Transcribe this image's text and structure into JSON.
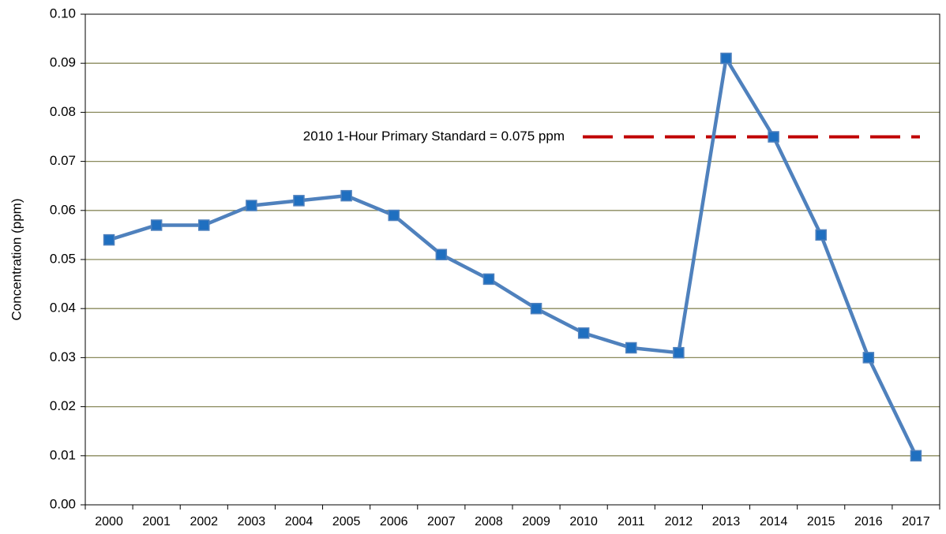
{
  "chart_data": {
    "type": "line",
    "categories": [
      "2000",
      "2001",
      "2002",
      "2003",
      "2004",
      "2005",
      "2006",
      "2007",
      "2008",
      "2009",
      "2010",
      "2011",
      "2012",
      "2013",
      "2014",
      "2015",
      "2016",
      "2017"
    ],
    "values": [
      0.054,
      0.057,
      0.057,
      0.061,
      0.062,
      0.063,
      0.059,
      0.051,
      0.046,
      0.04,
      0.035,
      0.032,
      0.031,
      0.091,
      0.075,
      0.055,
      0.03,
      0.01
    ],
    "color": "#4f81bd",
    "marker_color": "#1f6fc0",
    "y_label": "Concentration (ppm)",
    "ylim": [
      0,
      0.1
    ],
    "yticks": [
      {
        "value": 0,
        "label": "0.00"
      },
      0.01,
      0.02,
      0.03,
      0.04,
      0.05,
      0.06,
      0.07,
      0.08,
      0.09,
      {
        "value": 0.1,
        "label": "0.10"
      }
    ],
    "grid": true,
    "reference_line": {
      "value": 0.075,
      "label": "2010 1-Hour Primary Standard = 0.075 ppm",
      "color": "#c00000"
    }
  }
}
